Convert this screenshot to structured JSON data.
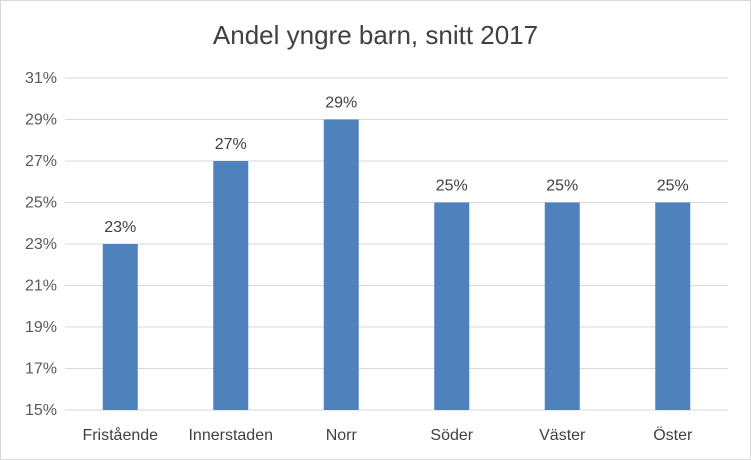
{
  "chart_data": {
    "type": "bar",
    "title": "Andel yngre barn, snitt 2017",
    "categories": [
      "Fristående",
      "Innerstaden",
      "Norr",
      "Söder",
      "Väster",
      "Öster"
    ],
    "values": [
      23,
      27,
      29,
      25,
      25,
      25
    ],
    "data_labels": [
      "23%",
      "27%",
      "29%",
      "25%",
      "25%",
      "25%"
    ],
    "ylim": [
      15,
      31
    ],
    "yticks": [
      15,
      17,
      19,
      21,
      23,
      25,
      27,
      29,
      31
    ],
    "ytick_labels": [
      "15%",
      "17%",
      "19%",
      "21%",
      "23%",
      "25%",
      "27%",
      "29%",
      "31%"
    ],
    "xlabel": "",
    "ylabel": "",
    "grid": true,
    "legend": "none",
    "bar_color": "#4f81bd",
    "grid_color": "#d9d9d9"
  }
}
